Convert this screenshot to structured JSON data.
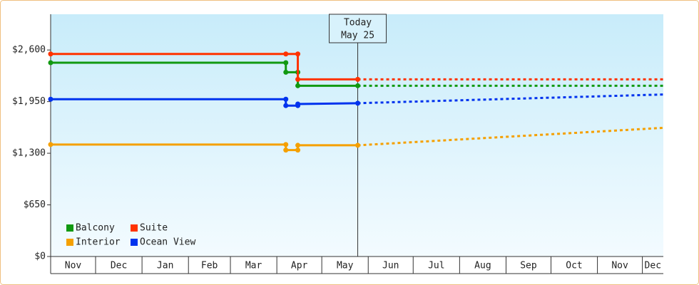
{
  "chart_data": {
    "type": "line",
    "ylim": [
      0,
      3050
    ],
    "yticks": [
      {
        "value": 0,
        "label": "$0"
      },
      {
        "value": 650,
        "label": "$650"
      },
      {
        "value": 1300,
        "label": "$1,300"
      },
      {
        "value": 1950,
        "label": "$1,950"
      },
      {
        "value": 2600,
        "label": "$2,600"
      }
    ],
    "xlim": [
      0,
      409
    ],
    "xticks": [
      {
        "value": 0,
        "label": "Nov"
      },
      {
        "value": 30,
        "label": "Dec"
      },
      {
        "value": 61,
        "label": "Jan"
      },
      {
        "value": 92,
        "label": "Feb"
      },
      {
        "value": 120,
        "label": "Mar"
      },
      {
        "value": 151,
        "label": "Apr"
      },
      {
        "value": 181,
        "label": "May"
      },
      {
        "value": 212,
        "label": "Jun"
      },
      {
        "value": 242,
        "label": "Jul"
      },
      {
        "value": 273,
        "label": "Aug"
      },
      {
        "value": 304,
        "label": "Sep"
      },
      {
        "value": 334,
        "label": "Oct"
      },
      {
        "value": 365,
        "label": "Nov"
      },
      {
        "value": 395,
        "label": "Dec"
      }
    ],
    "today": {
      "x": 205,
      "label": [
        "Today",
        "May 25"
      ]
    },
    "series": [
      {
        "name": "Balcony",
        "color": "#119911",
        "x": [
          0,
          157,
          157,
          165,
          165,
          205,
          409
        ],
        "values": [
          2440,
          2440,
          2320,
          2320,
          2150,
          2150,
          2150
        ]
      },
      {
        "name": "Suite",
        "color": "#ff3300",
        "x": [
          0,
          157,
          165,
          165,
          205,
          409
        ],
        "values": [
          2550,
          2550,
          2550,
          2230,
          2230,
          2230
        ]
      },
      {
        "name": "Interior",
        "color": "#f5a000",
        "x": [
          0,
          157,
          157,
          165,
          165,
          205,
          409
        ],
        "values": [
          1410,
          1410,
          1340,
          1340,
          1400,
          1400,
          1620
        ]
      },
      {
        "name": "Ocean View",
        "color": "#0033ee",
        "x": [
          0,
          157,
          157,
          165,
          165,
          205,
          409
        ],
        "values": [
          1980,
          1980,
          1900,
          1900,
          1920,
          1930,
          2040
        ]
      }
    ]
  }
}
